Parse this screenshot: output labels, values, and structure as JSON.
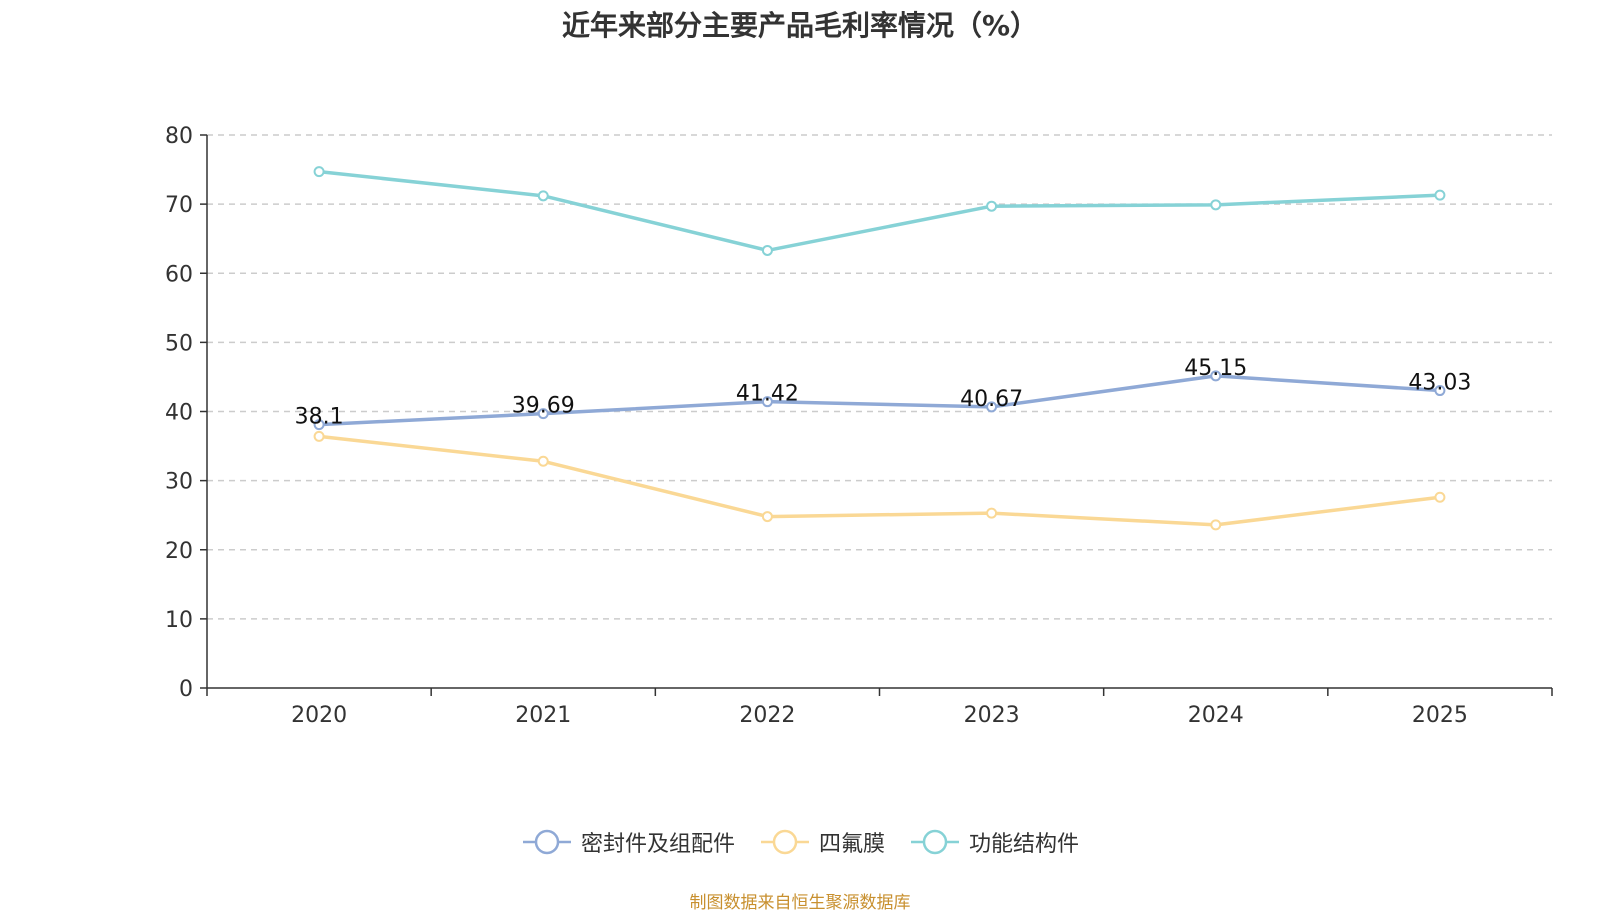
{
  "title": "近年来部分主要产品毛利率情况（%）",
  "source_note": "制图数据来自恒生聚源数据库",
  "chart_data": {
    "type": "line",
    "title": "近年来部分主要产品毛利率情况（%）",
    "xlabel": "",
    "ylabel": "",
    "categories": [
      "2020",
      "2021",
      "2022",
      "2023",
      "2024",
      "2025"
    ],
    "ylim": [
      0,
      80
    ],
    "yticks": [
      0,
      10,
      20,
      30,
      40,
      50,
      60,
      70,
      80
    ],
    "grid": true,
    "legend_position": "bottom",
    "series": [
      {
        "name": "密封件及组配件",
        "color": "#8fa9d6",
        "values": [
          38.1,
          39.69,
          41.42,
          40.67,
          45.15,
          43.03
        ],
        "labels": [
          "38.1",
          "39.69",
          "41.42",
          "40.67",
          "45.15",
          "43.03"
        ],
        "show_labels": true
      },
      {
        "name": "四氟膜",
        "color": "#fad895",
        "values": [
          36.4,
          32.8,
          24.8,
          25.3,
          23.6,
          27.6
        ],
        "show_labels": false
      },
      {
        "name": "功能结构件",
        "color": "#86d2d6",
        "values": [
          74.7,
          71.2,
          63.3,
          69.7,
          69.9,
          71.3
        ],
        "show_labels": false
      }
    ]
  }
}
